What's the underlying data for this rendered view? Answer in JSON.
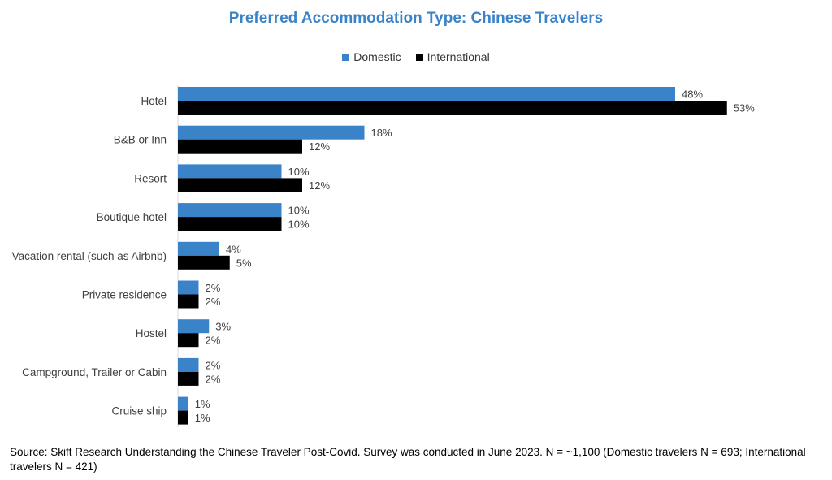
{
  "chart_data": {
    "type": "bar",
    "orientation": "horizontal",
    "title": "Preferred Accommodation Type: Chinese Travelers",
    "xlabel": "",
    "ylabel": "",
    "xlim": [
      0,
      60
    ],
    "grid": false,
    "legend_position": "top-center",
    "categories": [
      "Hotel",
      "B&B or Inn",
      "Resort",
      "Boutique hotel",
      "Vacation rental (such as Airbnb)",
      "Private residence",
      "Hostel",
      "Campground, Trailer or Cabin",
      "Cruise ship"
    ],
    "series": [
      {
        "name": "Domestic",
        "color": "#3b83c9",
        "values": [
          48,
          18,
          10,
          10,
          4,
          2,
          3,
          2,
          1
        ],
        "labels": [
          "48%",
          "18%",
          "10%",
          "10%",
          "4%",
          "2%",
          "3%",
          "2%",
          "1%"
        ]
      },
      {
        "name": "International",
        "color": "#000000",
        "values": [
          53,
          12,
          12,
          10,
          5,
          2,
          2,
          2,
          1
        ],
        "labels": [
          "53%",
          "12%",
          "12%",
          "10%",
          "5%",
          "2%",
          "2%",
          "2%",
          "1%"
        ]
      }
    ]
  },
  "footnote": "Source: Skift Research Understanding the Chinese Traveler Post-Covid. Survey was conducted in June 2023. N = ~1,100 (Domestic travelers N = 693; International travelers N = 421)"
}
